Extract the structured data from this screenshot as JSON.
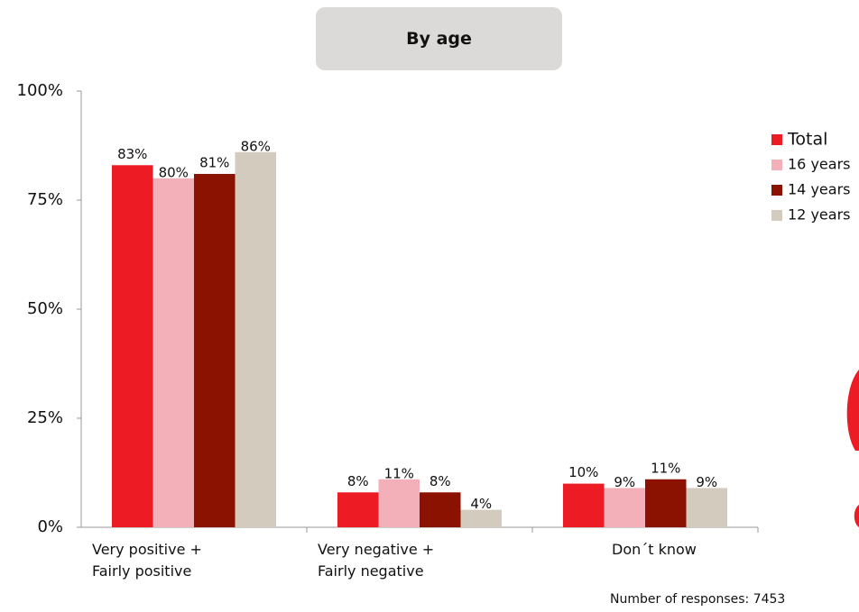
{
  "chart_data": {
    "type": "bar",
    "title": "By age",
    "categories": [
      "Very positive +\nFairly positive",
      "Very negative +\nFairly negative",
      "Don´t know"
    ],
    "series": [
      {
        "name": "Total",
        "color": "#ed1c24",
        "values": [
          83,
          8,
          10
        ],
        "value_labels": [
          "83%",
          "8%",
          "10%"
        ]
      },
      {
        "name": "16 years",
        "color": "#f4b0b8",
        "values": [
          80,
          11,
          9
        ],
        "value_labels": [
          "80%",
          "11%",
          "9%"
        ]
      },
      {
        "name": "14 years",
        "color": "#8b1100",
        "values": [
          81,
          8,
          11
        ],
        "value_labels": [
          "81%",
          "8%",
          "11%"
        ]
      },
      {
        "name": "12 years",
        "color": "#d3cbbd",
        "values": [
          86,
          4,
          9
        ],
        "value_labels": [
          "86%",
          "4%",
          "9%"
        ]
      }
    ],
    "ylim": [
      0,
      100
    ],
    "yticks": [
      {
        "value": 0,
        "label": "0%"
      },
      {
        "value": 25,
        "label": "25%"
      },
      {
        "value": 50,
        "label": "50%"
      },
      {
        "value": 75,
        "label": "75%"
      },
      {
        "value": 100,
        "label": "100%"
      }
    ],
    "legend": "right",
    "note": "Number of responses: 7453"
  }
}
